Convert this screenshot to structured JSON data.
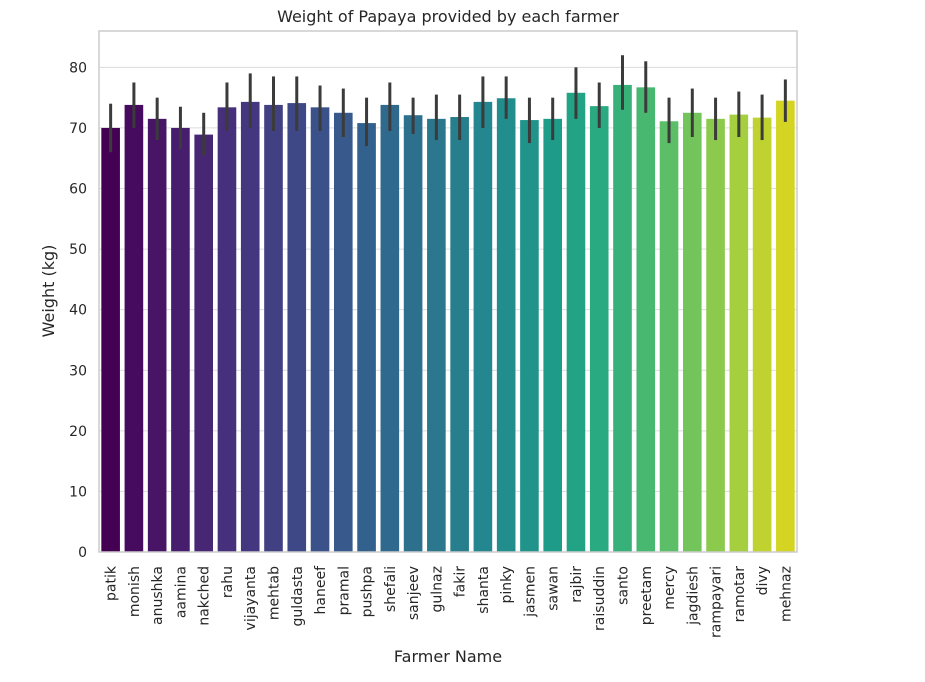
{
  "chart_data": {
    "type": "bar",
    "title": "Weight of Papaya provided by each farmer",
    "xlabel": "Farmer Name",
    "ylabel": "Weight (kg)",
    "ylim": [
      0,
      86
    ],
    "yticks": [
      "0",
      "10",
      "20",
      "30",
      "40",
      "50",
      "60",
      "70",
      "80"
    ],
    "grid": "horizontal",
    "categories": [
      "patik",
      "monish",
      "anushka",
      "aamina",
      "nakched",
      "rahu",
      "vijayanta",
      "mehtab",
      "guldasta",
      "haneef",
      "pramal",
      "pushpa",
      "shefali",
      "sanjeev",
      "gulnaz",
      "fakir",
      "shanta",
      "pinky",
      "jasmen",
      "sawan",
      "rajbir",
      "raisuddin",
      "santo",
      "preetam",
      "mercy",
      "jagdiesh",
      "rampayari",
      "ramotar",
      "divy",
      "mehnaz"
    ],
    "values": [
      70.0,
      73.8,
      71.5,
      70.0,
      68.9,
      73.4,
      74.3,
      73.8,
      74.1,
      73.4,
      72.5,
      70.8,
      73.8,
      72.1,
      71.5,
      71.8,
      74.3,
      74.9,
      71.3,
      71.5,
      75.8,
      73.6,
      77.1,
      76.7,
      71.1,
      72.5,
      71.5,
      72.2,
      71.7,
      74.5
    ],
    "err_low": [
      66.0,
      70.0,
      68.0,
      66.5,
      65.5,
      69.5,
      70.0,
      69.5,
      69.5,
      69.5,
      68.5,
      67.0,
      69.5,
      69.0,
      68.0,
      68.0,
      70.0,
      71.5,
      67.5,
      68.0,
      71.5,
      70.0,
      73.0,
      72.5,
      67.5,
      68.5,
      68.0,
      68.5,
      68.0,
      71.0
    ],
    "err_high": [
      74.0,
      77.5,
      75.0,
      73.5,
      72.5,
      77.5,
      79.0,
      78.5,
      78.5,
      77.0,
      76.5,
      75.0,
      77.5,
      75.0,
      75.5,
      75.5,
      78.5,
      78.5,
      75.0,
      75.0,
      80.0,
      77.5,
      82.0,
      81.0,
      75.0,
      76.5,
      75.0,
      76.0,
      75.5,
      78.0
    ],
    "colors": [
      "#440154",
      "#460b5e",
      "#471466",
      "#471d6d",
      "#472674",
      "#462f7b",
      "#44377f",
      "#414083",
      "#3e4887",
      "#3a518a",
      "#37598c",
      "#33618d",
      "#30698e",
      "#2c708e",
      "#2a778e",
      "#277f8e",
      "#24868e",
      "#228d8d",
      "#20948b",
      "#1f9c89",
      "#22a385",
      "#2aaa80",
      "#37b179",
      "#48b871",
      "#5cbf67",
      "#73c55b",
      "#8bca4d",
      "#a5cf3e",
      "#bfd22f",
      "#d4d422"
    ]
  }
}
